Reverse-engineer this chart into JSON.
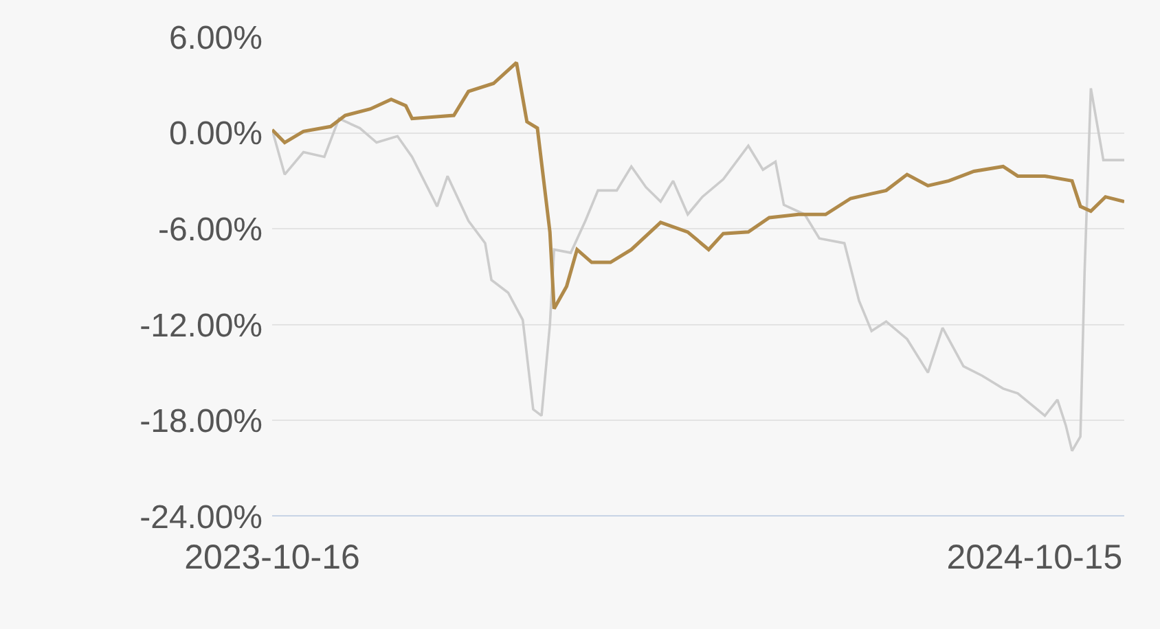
{
  "chart_data": {
    "type": "line",
    "xlim": [
      "2023-10-16",
      "2024-11-27"
    ],
    "xticks": [
      {
        "value": "2023-10-16",
        "label": "2023-10-16"
      },
      {
        "value": "2024-10-15",
        "label": "2024-10-15"
      }
    ],
    "ylim": [
      -24,
      6
    ],
    "yticks": [
      {
        "value": 6,
        "label": "6.00%"
      },
      {
        "value": 0,
        "label": "0.00%"
      },
      {
        "value": -6,
        "label": "-6.00%"
      },
      {
        "value": -12,
        "label": "-12.00%"
      },
      {
        "value": -18,
        "label": "-18.00%"
      },
      {
        "value": -24,
        "label": "-24.00%"
      }
    ],
    "grid": "y",
    "marker": "none",
    "line_style": "solid",
    "series": [
      {
        "color": "#cccccc",
        "x": [
          "2023-10-16",
          "2023-10-22",
          "2023-10-31",
          "2023-11-10",
          "2023-11-17",
          "2023-11-27",
          "2023-12-05",
          "2023-12-15",
          "2023-12-22",
          "2024-01-03",
          "2024-01-08",
          "2024-01-18",
          "2024-01-26",
          "2024-01-29",
          "2024-02-06",
          "2024-02-13",
          "2024-02-18",
          "2024-02-22",
          "2024-02-26",
          "2024-02-28",
          "2024-03-07",
          "2024-03-14",
          "2024-03-20",
          "2024-03-29",
          "2024-04-05",
          "2024-04-12",
          "2024-04-19",
          "2024-04-25",
          "2024-05-02",
          "2024-05-09",
          "2024-05-19",
          "2024-05-31",
          "2024-06-07",
          "2024-06-13",
          "2024-06-17",
          "2024-06-27",
          "2024-07-04",
          "2024-07-16",
          "2024-07-23",
          "2024-07-29",
          "2024-08-05",
          "2024-08-15",
          "2024-08-25",
          "2024-09-01",
          "2024-09-11",
          "2024-09-20",
          "2024-09-30",
          "2024-10-07",
          "2024-10-20",
          "2024-10-26",
          "2024-10-30",
          "2024-11-02",
          "2024-11-06",
          "2024-11-08",
          "2024-11-11",
          "2024-11-17",
          "2024-11-27"
        ],
        "values": [
          0.2,
          -2.6,
          -1.2,
          -1.5,
          0.9,
          0.3,
          -0.6,
          -0.2,
          -1.5,
          -4.6,
          -2.7,
          -5.5,
          -6.9,
          -9.2,
          -10.0,
          -11.7,
          -17.3,
          -17.7,
          -12.0,
          -7.3,
          -7.5,
          -5.5,
          -3.6,
          -3.6,
          -2.1,
          -3.4,
          -4.3,
          -3.0,
          -5.1,
          -4.0,
          -2.9,
          -0.8,
          -2.3,
          -1.8,
          -4.5,
          -5.1,
          -6.6,
          -6.9,
          -10.5,
          -12.4,
          -11.8,
          -12.9,
          -15.0,
          -12.2,
          -14.6,
          -15.2,
          -16.0,
          -16.3,
          -17.7,
          -16.7,
          -18.3,
          -19.9,
          -19.0,
          -8.7,
          2.8,
          -1.7,
          -1.7
        ]
      },
      {
        "color": "#b08a4a",
        "x": [
          "2023-10-16",
          "2023-10-22",
          "2023-10-31",
          "2023-11-13",
          "2023-11-20",
          "2023-12-02",
          "2023-12-12",
          "2023-12-19",
          "2023-12-22",
          "2024-01-11",
          "2024-01-18",
          "2024-01-30",
          "2024-02-10",
          "2024-02-15",
          "2024-02-20",
          "2024-02-26",
          "2024-02-28",
          "2024-03-05",
          "2024-03-10",
          "2024-03-17",
          "2024-03-26",
          "2024-04-05",
          "2024-04-19",
          "2024-05-02",
          "2024-05-12",
          "2024-05-19",
          "2024-05-31",
          "2024-06-10",
          "2024-06-24",
          "2024-07-07",
          "2024-07-19",
          "2024-08-05",
          "2024-08-15",
          "2024-08-25",
          "2024-09-04",
          "2024-09-16",
          "2024-09-30",
          "2024-10-07",
          "2024-10-20",
          "2024-11-02",
          "2024-11-06",
          "2024-11-11",
          "2024-11-18",
          "2024-11-27"
        ],
        "values": [
          0.2,
          -0.6,
          0.1,
          0.4,
          1.1,
          1.5,
          2.1,
          1.7,
          0.9,
          1.1,
          2.6,
          3.1,
          4.4,
          0.7,
          0.3,
          -6.2,
          -11.0,
          -9.6,
          -7.3,
          -8.1,
          -8.1,
          -7.3,
          -5.6,
          -6.2,
          -7.3,
          -6.3,
          -6.2,
          -5.3,
          -5.1,
          -5.1,
          -4.1,
          -3.6,
          -2.6,
          -3.3,
          -3.0,
          -2.4,
          -2.1,
          -2.7,
          -2.7,
          -3.0,
          -4.6,
          -4.9,
          -4.0,
          -4.3
        ]
      }
    ]
  }
}
